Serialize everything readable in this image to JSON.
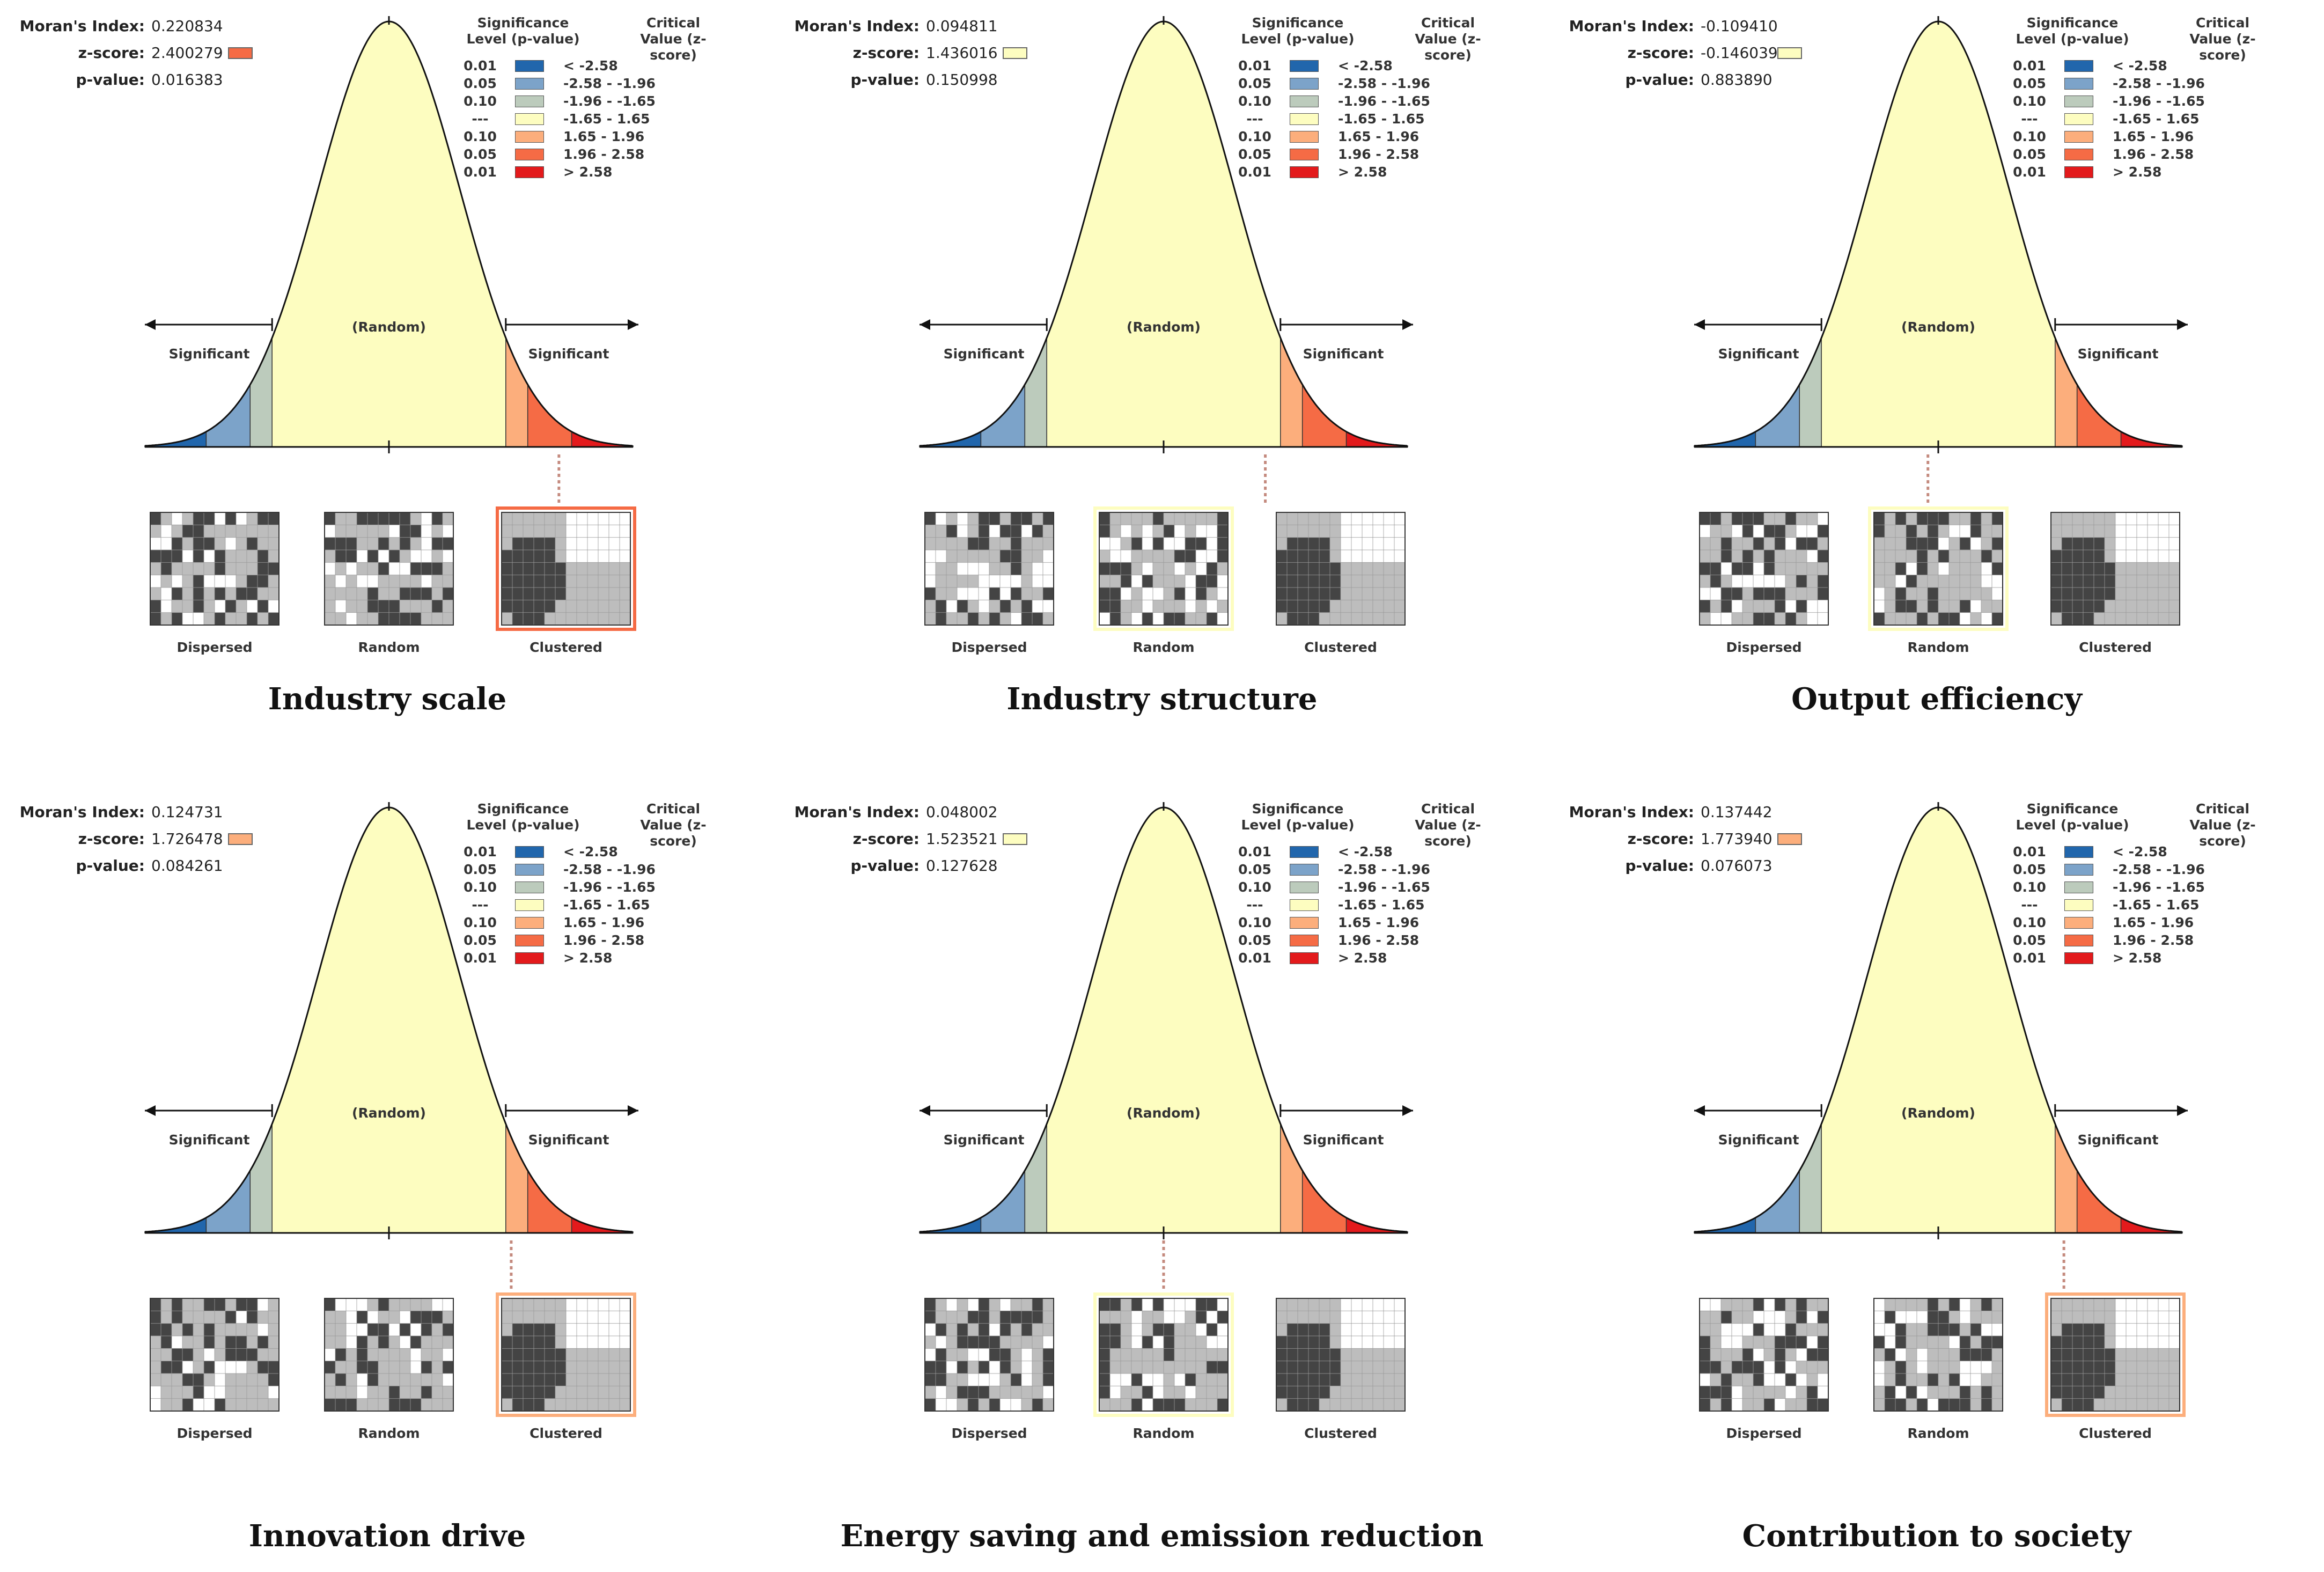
{
  "figure": {
    "colors": {
      "curve_fill": "#fdfdc0",
      "curve_stroke": "#111111"
    },
    "legend": {
      "header_p": "Significance Level (p-value)",
      "header_z": "Critical Value (z-score)",
      "rows": [
        {
          "p": "0.01",
          "z": "< -2.58",
          "color": "#2166ac"
        },
        {
          "p": "0.05",
          "z": "-2.58 - -1.96",
          "color": "#7ca3c9"
        },
        {
          "p": "0.10",
          "z": "-1.96 - -1.65",
          "color": "#bccbbc"
        },
        {
          "p": "---",
          "z": "-1.65 - 1.65",
          "color": "#fdfdc0"
        },
        {
          "p": "0.10",
          "z": "1.65 - 1.96",
          "color": "#fcae7c"
        },
        {
          "p": "0.05",
          "z": "1.96 - 2.58",
          "color": "#f56b45"
        },
        {
          "p": "0.01",
          "z": "> 2.58",
          "color": "#e31a1c"
        }
      ]
    },
    "labels": {
      "morans_index": "Moran's Index:",
      "z_score": "z-score:",
      "p_value": "p-value:",
      "random": "(Random)",
      "significant_left": "Significant",
      "significant_right": "Significant",
      "dispersed": "Dispersed",
      "random_map": "Random",
      "clustered": "Clustered"
    }
  },
  "chart_data": [
    {
      "type": "other",
      "title": "Industry scale",
      "morans_index": "0.220834",
      "z_score": "2.400279",
      "p_value": "0.016383",
      "z": 2.400279,
      "result": "Clustered",
      "z_color": "#f56b45"
    },
    {
      "type": "other",
      "title": "Industry structure",
      "morans_index": "0.094811",
      "z_score": "1.436016",
      "p_value": "0.150998",
      "z": 1.436016,
      "result": "Random",
      "z_color": "#fdfdc0"
    },
    {
      "type": "other",
      "title": "Output efficiency",
      "morans_index": "-0.109410",
      "z_score": "-0.146039",
      "p_value": "0.883890",
      "z": -0.146039,
      "result": "Random",
      "z_color": "#fdfdc0"
    },
    {
      "type": "other",
      "title": "Innovation drive",
      "morans_index": "0.124731",
      "z_score": "1.726478",
      "p_value": "0.084261",
      "z": 1.726478,
      "result": "Clustered",
      "z_color": "#fcae7c"
    },
    {
      "type": "other",
      "title": "Energy saving and emission reduction",
      "morans_index": "0.048002",
      "z_score": "1.523521",
      "p_value": "0.127628",
      "z": 1.523521,
      "result": "Random",
      "z_color": "#fdfdc0"
    },
    {
      "type": "other",
      "title": "Contribution to society",
      "morans_index": "0.137442",
      "z_score": "1.773940",
      "p_value": "0.076073",
      "z": 1.77394,
      "result": "Clustered",
      "z_color": "#fcae7c"
    }
  ]
}
